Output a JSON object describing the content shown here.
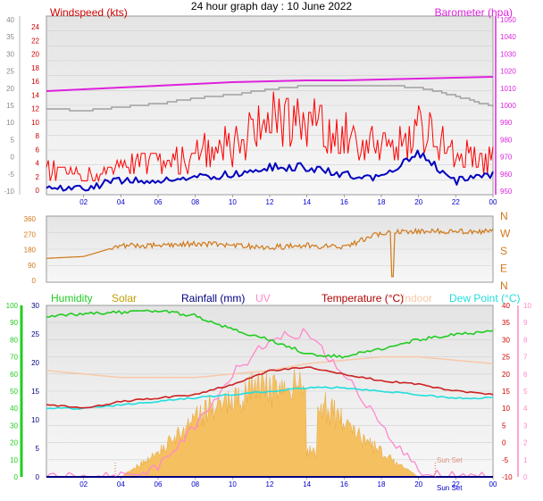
{
  "title": "24 hour graph day : 10 June 2022",
  "colors": {
    "wind_speed": "#ff0000",
    "wind_avg": "#0000c0",
    "barometer": "#dd22dd",
    "barometer_trace": "#a0a0a0",
    "direction": "#d07818",
    "humidity": "#22cc22",
    "solar": "#f5c060",
    "rain": "#000080",
    "uv": "#ff88cc",
    "temperature": "#cc2222",
    "indoor": "#f8c8a8",
    "dewpoint": "#22dddd",
    "axis_blue": "#0000cc",
    "axis_grey": "#888888",
    "plot_bg": "#e9e9e9"
  },
  "chart_data": [
    {
      "type": "line",
      "id": "wind_pressure",
      "labels": {
        "left": "Windspeed (kts)",
        "right": "Barometer (hpa)"
      },
      "x_ticks": [
        "02",
        "04",
        "06",
        "08",
        "10",
        "12",
        "14",
        "16",
        "18",
        "20",
        "22",
        "00"
      ],
      "y_left_ticks": [
        "24",
        "22",
        "20",
        "18",
        "16",
        "14",
        "12",
        "10",
        "8",
        "6",
        "4",
        "2",
        "0"
      ],
      "y_left_ylim": [
        -1,
        25
      ],
      "y_outer_ticks": [
        "40",
        "35",
        "30",
        "25",
        "20",
        "15",
        "10",
        "5",
        "0",
        "-5",
        "-10"
      ],
      "y_right_ticks": [
        "1050",
        "1040",
        "1030",
        "1020",
        "1010",
        "1000",
        "990",
        "980",
        "970",
        "960",
        "950"
      ],
      "y_right_ylim": [
        950,
        1050
      ],
      "hours": [
        0,
        2,
        4,
        6,
        8,
        10,
        12,
        14,
        16,
        18,
        20,
        22,
        24
      ],
      "series": [
        {
          "key": "barometer",
          "axis": "right",
          "values": [
            1008,
            1009,
            1010,
            1011,
            1012,
            1013,
            1013.5,
            1014,
            1014,
            1014.5,
            1015,
            1015.5,
            1016
          ]
        },
        {
          "key": "wind_gust",
          "axis": "left",
          "values": [
            2,
            1,
            2,
            3,
            4,
            5,
            8,
            8,
            6,
            5,
            7,
            4,
            3
          ]
        },
        {
          "key": "wind_avg",
          "axis": "left",
          "values": [
            0,
            0,
            1,
            1,
            1.5,
            2,
            3,
            3,
            2,
            1.5,
            5,
            1,
            2
          ]
        }
      ]
    },
    {
      "type": "scatter",
      "id": "wind_direction",
      "y_ticks": [
        "360",
        "270",
        "180",
        "90",
        "0"
      ],
      "ylim": [
        0,
        360
      ],
      "compass": [
        "N",
        "W",
        "S",
        "E",
        "N"
      ],
      "hours": [
        0,
        2,
        4,
        6,
        8,
        10,
        12,
        14,
        16,
        18,
        20,
        22,
        24
      ],
      "values": [
        130,
        140,
        200,
        200,
        210,
        200,
        190,
        200,
        190,
        270,
        280,
        275,
        280
      ]
    },
    {
      "type": "area",
      "id": "weather",
      "labels": {
        "humidity": "Humidity",
        "solar": "Solar",
        "rain": "Rainfall (mm)",
        "uv": "UV",
        "temperature": "Temperature (°C)",
        "indoor": "Indoor",
        "dewpoint": "Dew Point (°C)"
      },
      "x_ticks": [
        "02",
        "04",
        "06",
        "08",
        "10",
        "12",
        "14",
        "16",
        "18",
        "20",
        "22",
        "00"
      ],
      "humidity_ticks": [
        "100",
        "90",
        "80",
        "70",
        "60",
        "50",
        "40",
        "30",
        "20",
        "10",
        "0"
      ],
      "rain_ticks": [
        "30",
        "25",
        "20",
        "15",
        "10",
        "5",
        "0"
      ],
      "temp_ticks": [
        "40",
        "35",
        "30",
        "25",
        "20",
        "15",
        "10",
        "5",
        "0",
        "-5",
        "-10"
      ],
      "uv_ticks": [
        "10",
        "9",
        "8",
        "7",
        "6",
        "5",
        "4",
        "3",
        "2",
        "1",
        "0"
      ],
      "annotations": [
        "Sun Set",
        "Sun Set"
      ],
      "hours": [
        0,
        2,
        4,
        6,
        8,
        10,
        12,
        14,
        16,
        18,
        20,
        22,
        24
      ],
      "series": [
        {
          "key": "humidity",
          "axis": "humidity",
          "ylim": [
            0,
            100
          ],
          "values": [
            94,
            95,
            96,
            97,
            94,
            86,
            80,
            72,
            70,
            75,
            80,
            83,
            85
          ]
        },
        {
          "key": "temperature",
          "axis": "temp",
          "ylim": [
            -10,
            40
          ],
          "values": [
            11,
            10,
            12,
            13,
            14,
            17,
            21,
            22,
            20,
            18,
            17,
            15,
            14
          ]
        },
        {
          "key": "dewpoint",
          "axis": "temp",
          "ylim": [
            -10,
            40
          ],
          "values": [
            10,
            10,
            11,
            12,
            13,
            14,
            15,
            16,
            16,
            15,
            14,
            13,
            13
          ]
        },
        {
          "key": "indoor",
          "axis": "temp",
          "ylim": [
            -10,
            40
          ],
          "values": [
            21,
            20,
            19,
            19,
            19,
            20,
            21,
            23,
            24,
            25,
            25,
            24,
            23
          ]
        },
        {
          "key": "solar",
          "axis": "rain",
          "ylim": [
            0,
            30
          ],
          "values": [
            0,
            0,
            0,
            5,
            12,
            17,
            18,
            18,
            11,
            5,
            0,
            0,
            0
          ]
        },
        {
          "key": "uv",
          "axis": "uv",
          "ylim": [
            0,
            10
          ],
          "values": [
            0,
            0,
            0,
            0.5,
            3,
            6,
            8,
            8.5,
            6,
            3,
            0.3,
            0,
            0
          ]
        },
        {
          "key": "rain",
          "axis": "rain",
          "ylim": [
            0,
            30
          ],
          "values": [
            0,
            0,
            0,
            0,
            0,
            0,
            0,
            0,
            0,
            0,
            0,
            0,
            0
          ]
        }
      ]
    }
  ]
}
